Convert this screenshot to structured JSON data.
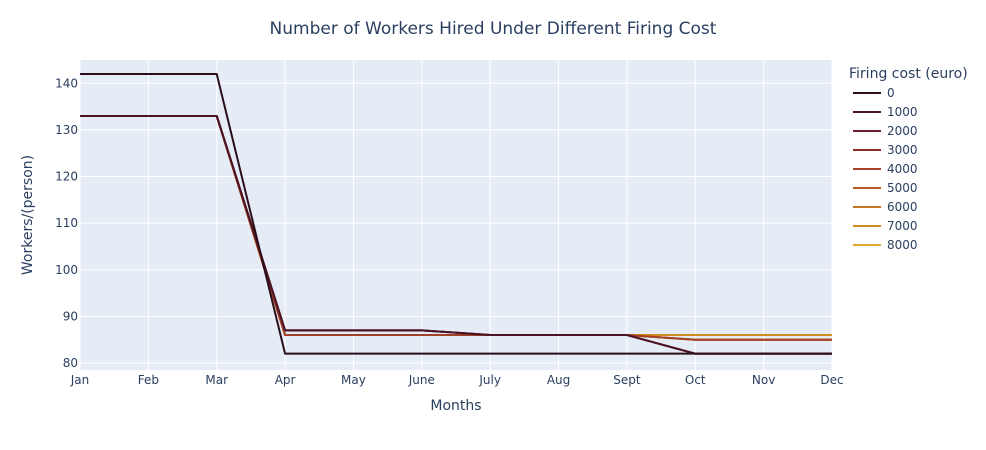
{
  "chart_data": {
    "type": "line",
    "title": "Number of Workers Hired Under Different Firing Cost",
    "xlabel": "Months",
    "ylabel": "Workers/(person)",
    "categories": [
      "Jan",
      "Feb",
      "Mar",
      "Apr",
      "May",
      "June",
      "July",
      "Aug",
      "Sept",
      "Oct",
      "Nov",
      "Dec"
    ],
    "ylim": [
      78.5,
      145
    ],
    "yticks": [
      80,
      90,
      100,
      110,
      120,
      130,
      140
    ],
    "grid": true,
    "legend": {
      "title": "Firing cost (euro)",
      "placement": "right"
    },
    "series": [
      {
        "name": "0",
        "color": "#2a0e1a",
        "values": [
          142,
          142,
          142,
          82,
          82,
          82,
          82,
          82,
          82,
          82,
          82,
          82
        ]
      },
      {
        "name": "1000",
        "color": "#4b1426",
        "values": [
          133,
          133,
          133,
          87,
          87,
          87,
          86,
          86,
          86,
          82,
          82,
          82
        ]
      },
      {
        "name": "2000",
        "color": "#6b1e2e",
        "values": [
          133,
          133,
          133,
          87,
          87,
          87,
          86,
          86,
          86,
          82,
          82,
          82
        ]
      },
      {
        "name": "3000",
        "color": "#8a2c2a",
        "values": [
          133,
          133,
          133,
          87,
          87,
          87,
          86,
          86,
          86,
          82,
          82,
          82
        ]
      },
      {
        "name": "4000",
        "color": "#a34226",
        "values": [
          133,
          133,
          133,
          86,
          86,
          86,
          86,
          86,
          86,
          85,
          85,
          85
        ]
      },
      {
        "name": "5000",
        "color": "#b75a24",
        "values": [
          133,
          133,
          133,
          86,
          86,
          86,
          86,
          86,
          86,
          85,
          85,
          85
        ]
      },
      {
        "name": "6000",
        "color": "#c47422",
        "values": [
          133,
          133,
          133,
          86,
          86,
          86,
          86,
          86,
          86,
          85,
          85,
          85
        ]
      },
      {
        "name": "7000",
        "color": "#d08c1d",
        "values": [
          133,
          133,
          133,
          86,
          86,
          86,
          86,
          86,
          86,
          86,
          86,
          86
        ]
      },
      {
        "name": "8000",
        "color": "#dca92a",
        "values": [
          133,
          133,
          133,
          86,
          86,
          86,
          86,
          86,
          86,
          86,
          86,
          86
        ]
      }
    ]
  },
  "colors": {
    "plot_bg": "#e5ecf6",
    "grid": "#ffffff",
    "text": "#2a3f5f"
  }
}
